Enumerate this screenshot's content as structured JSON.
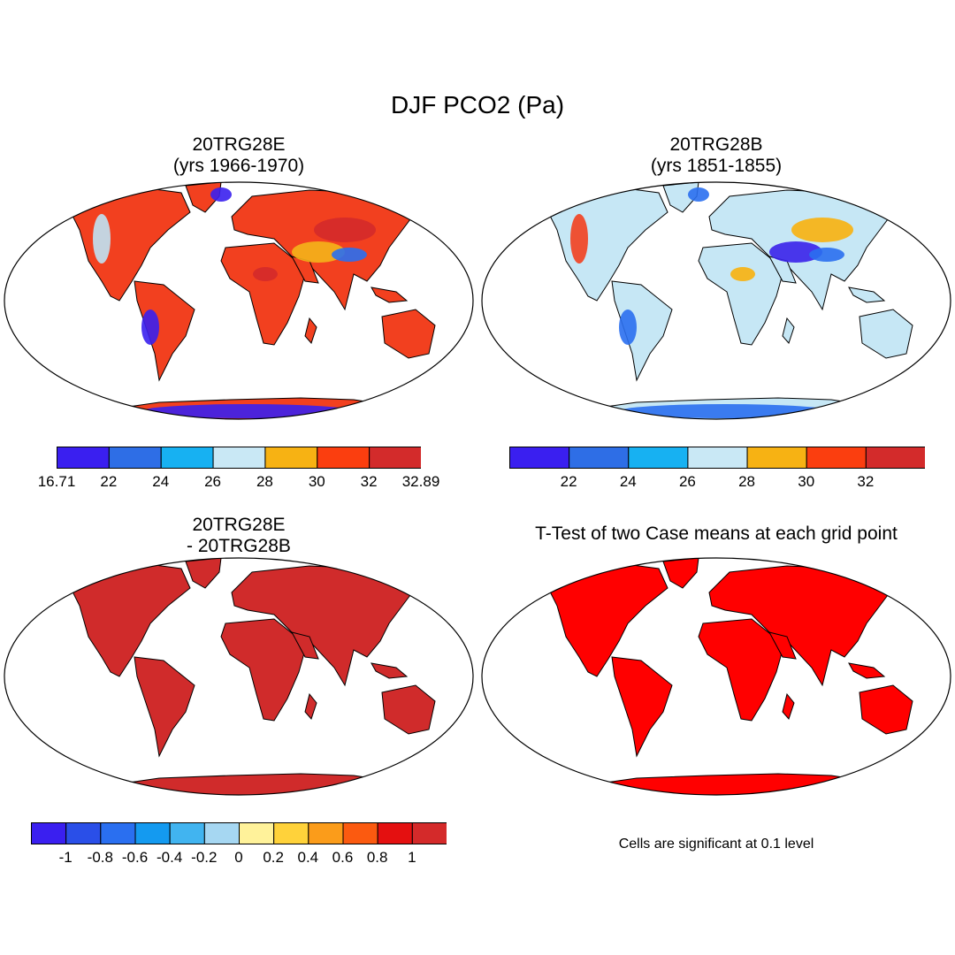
{
  "main_title": "DJF PCO2 (Pa)",
  "panels": [
    {
      "id": "case1",
      "title_line1": "20TRG28E",
      "title_line2": "(yrs 1966-1970)",
      "land_color": "#f2401f",
      "accent_colors": [
        "#d42a2a",
        "#f4b419",
        "#3a20ee",
        "#bfe3f4",
        "#2a6ff0"
      ]
    },
    {
      "id": "case2",
      "title_line1": "20TRG28B",
      "title_line2": "(yrs 1851-1855)",
      "land_color": "#c6e7f5",
      "accent_colors": [
        "#f8b10e",
        "#3a22ea",
        "#2a6ff0",
        "#f2401f"
      ]
    },
    {
      "id": "diff",
      "title_line1": "20TRG28E",
      "title_line2": "- 20TRG28B",
      "land_color": "#d02b2b"
    },
    {
      "id": "ttest",
      "title_line1": "T-Test of two Case means at each grid point",
      "land_color": "#ff0000",
      "note": "Cells are significant at 0.1 level"
    }
  ],
  "colorbars": {
    "case1": {
      "colors": [
        "#3a1ff0",
        "#2e6ee6",
        "#17b1f2",
        "#c9e8f5",
        "#f7b213",
        "#fb3e0f",
        "#d32b2b"
      ],
      "labels": [
        "16.71",
        "22",
        "24",
        "26",
        "28",
        "30",
        "32",
        "32.89"
      ]
    },
    "case2": {
      "colors": [
        "#3a1ff0",
        "#2e6ee6",
        "#17b1f2",
        "#c9e8f5",
        "#f7b213",
        "#fb3e0f",
        "#d32b2b"
      ],
      "labels": [
        "22",
        "24",
        "26",
        "28",
        "30",
        "32"
      ]
    },
    "diff": {
      "colors": [
        "#3a1ff0",
        "#2a4fe8",
        "#2a6ff0",
        "#149af0",
        "#41b4f0",
        "#a6d7f2",
        "#fff29a",
        "#ffd23a",
        "#fb9c1a",
        "#fb5a10",
        "#e41010",
        "#d42a2a"
      ],
      "labels": [
        "-1",
        "-0.8",
        "-0.6",
        "-0.4",
        "-0.2",
        "0",
        "0.2",
        "0.4",
        "0.6",
        "0.8",
        "1"
      ]
    }
  }
}
